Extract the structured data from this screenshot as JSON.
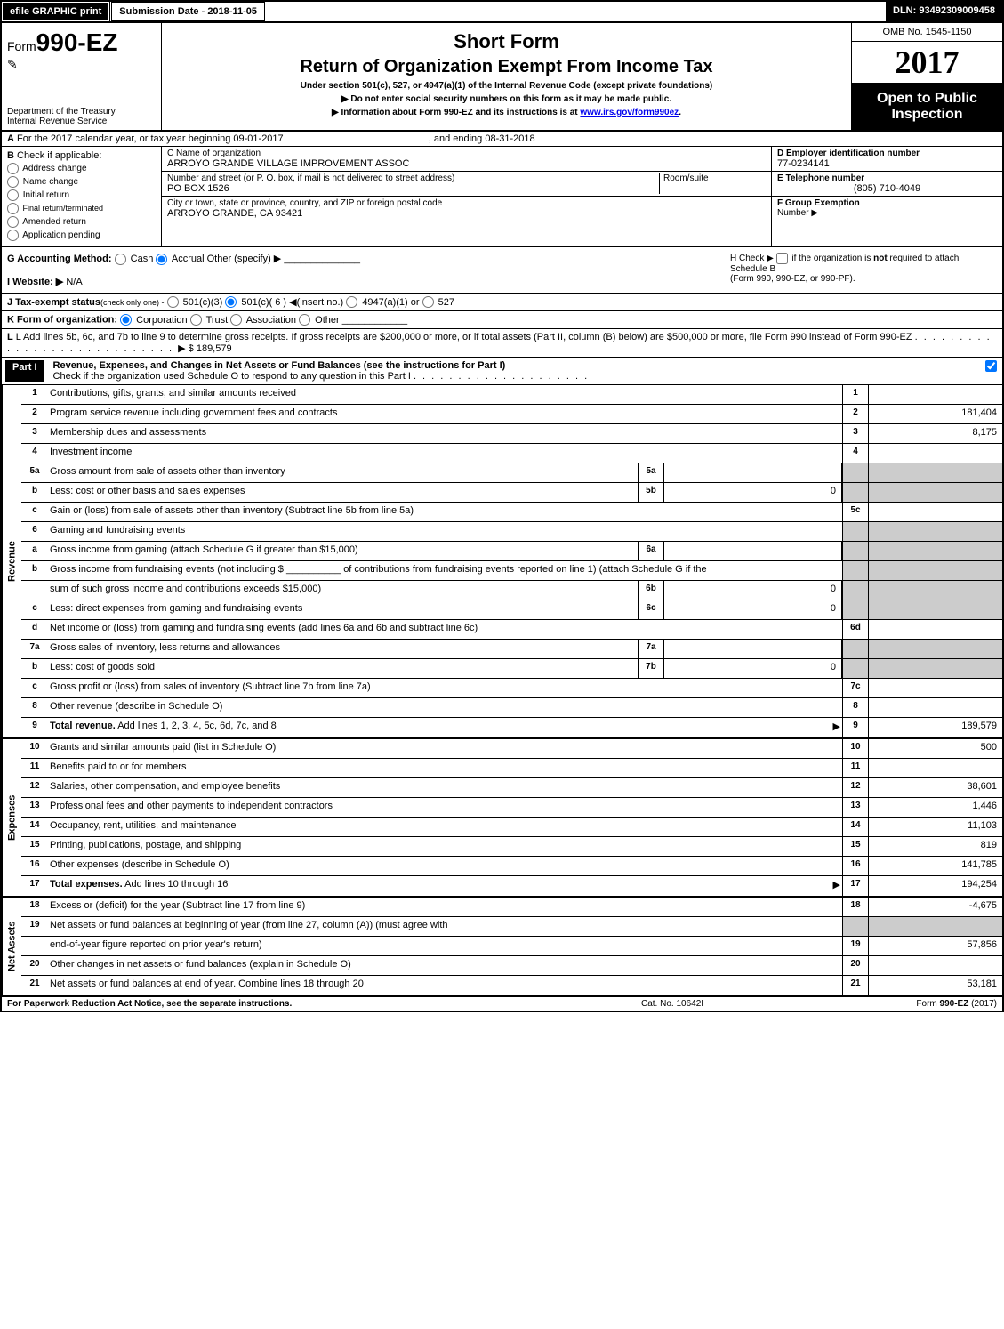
{
  "topbar": {
    "efile": "efile GRAPHIC print",
    "subdate": "Submission Date - 2018-11-05",
    "dln": "DLN: 93492309009458"
  },
  "header": {
    "form_prefix": "Form",
    "form_no": "990-EZ",
    "dept1": "Department of the Treasury",
    "dept2": "Internal Revenue Service",
    "shortform": "Short Form",
    "retorg": "Return of Organization Exempt From Income Tax",
    "undersec": "Under section 501(c), 527, or 4947(a)(1) of the Internal Revenue Code (except private foundations)",
    "warn1": "▶ Do not enter social security numbers on this form as it may be made public.",
    "warn2a": "▶ Information about Form 990-EZ and its instructions is at ",
    "warn2b": "www.irs.gov/form990ez",
    "warn2c": ".",
    "omb": "OMB No. 1545-1150",
    "year": "2017",
    "open1": "Open to Public",
    "open2": "Inspection"
  },
  "lineA": {
    "text1": "For the 2017 calendar year, or tax year beginning 09-01-2017",
    "text2": ", and ending 08-31-2018"
  },
  "boxB": {
    "heading": "Check if applicable:",
    "opts": [
      "Address change",
      "Name change",
      "Initial return",
      "Final return/terminated",
      "Amended return",
      "Application pending"
    ]
  },
  "boxC": {
    "name_label": "C Name of organization",
    "name": "ARROYO GRANDE VILLAGE IMPROVEMENT ASSOC",
    "street_label": "Number and street (or P. O. box, if mail is not delivered to street address)",
    "street": "PO BOX 1526",
    "room_label": "Room/suite",
    "city_label": "City or town, state or province, country, and ZIP or foreign postal code",
    "city": "ARROYO GRANDE, CA  93421"
  },
  "boxD": {
    "ein_label": "D Employer identification number",
    "ein": "77-0234141",
    "tel_label": "E Telephone number",
    "tel": "(805) 710-4049",
    "grp_label": "F Group Exemption",
    "grp2": "Number  ▶"
  },
  "lineG": {
    "label": "G Accounting Method:",
    "o1": "Cash",
    "o2": "Accrual",
    "o3": "Other (specify) ▶"
  },
  "lineH": {
    "text1": "H  Check ▶",
    "text2": "if the organization is ",
    "text3": "not",
    "text4": " required to attach Schedule B",
    "text5": "(Form 990, 990-EZ, or 990-PF)."
  },
  "lineI": {
    "label": "I Website: ▶",
    "val": "N/A"
  },
  "lineJ": {
    "label": "J Tax-exempt status",
    "sub": "(check only one) -",
    "o1": "501(c)(3)",
    "o2": "501(c)( 6 ) ◀(insert no.)",
    "o3": "4947(a)(1) or",
    "o4": "527"
  },
  "lineK": {
    "label": "K Form of organization:",
    "o1": "Corporation",
    "o2": "Trust",
    "o3": "Association",
    "o4": "Other"
  },
  "lineL": {
    "text1": "L Add lines 5b, 6c, and 7b to line 9 to determine gross receipts. If gross receipts are $200,000 or more, or if total assets (Part II, column (B) below) are $500,000 or more, file Form 990 instead of Form 990-EZ",
    "amt": "▶ $ 189,579"
  },
  "part1": {
    "label": "Part I",
    "title": "Revenue, Expenses, and Changes in Net Assets or Fund Balances (see the instructions for Part I)",
    "check": "Check if the organization used Schedule O to respond to any question in this Part I"
  },
  "sections": {
    "revenue": {
      "label": "Revenue",
      "rows": [
        {
          "n": "1",
          "t": "Contributions, gifts, grants, and similar amounts received",
          "sub": null,
          "box": "1",
          "val": "",
          "grey": false
        },
        {
          "n": "2",
          "t": "Program service revenue including government fees and contracts",
          "sub": null,
          "box": "2",
          "val": "181,404",
          "grey": false
        },
        {
          "n": "3",
          "t": "Membership dues and assessments",
          "sub": null,
          "box": "3",
          "val": "8,175",
          "grey": false
        },
        {
          "n": "4",
          "t": "Investment income",
          "sub": null,
          "box": "4",
          "val": "",
          "grey": false
        },
        {
          "n": "5a",
          "t": "Gross amount from sale of assets other than inventory",
          "sub": "5a",
          "subval": "",
          "box": null,
          "val": null,
          "grey": true
        },
        {
          "n": "b",
          "t": "Less: cost or other basis and sales expenses",
          "sub": "5b",
          "subval": "0",
          "box": null,
          "val": null,
          "grey": true
        },
        {
          "n": "c",
          "t": "Gain or (loss) from sale of assets other than inventory (Subtract line 5b from line 5a)",
          "sub": null,
          "box": "5c",
          "val": "",
          "grey": false
        },
        {
          "n": "6",
          "t": "Gaming and fundraising events",
          "sub": null,
          "box": null,
          "val": null,
          "grey": true
        },
        {
          "n": "a",
          "t": "Gross income from gaming (attach Schedule G if greater than $15,000)",
          "sub": "6a",
          "subval": "",
          "box": null,
          "val": null,
          "grey": true
        },
        {
          "n": "b",
          "t": "Gross income from fundraising events (not including $ __________ of contributions from fundraising events reported on line 1) (attach Schedule G if the",
          "sub": null,
          "box": null,
          "val": null,
          "grey": true
        },
        {
          "n": "",
          "t": "sum of such gross income and contributions exceeds $15,000)",
          "sub": "6b",
          "subval": "0",
          "box": null,
          "val": null,
          "grey": true
        },
        {
          "n": "c",
          "t": "Less: direct expenses from gaming and fundraising events",
          "sub": "6c",
          "subval": "0",
          "box": null,
          "val": null,
          "grey": true
        },
        {
          "n": "d",
          "t": "Net income or (loss) from gaming and fundraising events (add lines 6a and 6b and subtract line 6c)",
          "sub": null,
          "box": "6d",
          "val": "",
          "grey": false
        },
        {
          "n": "7a",
          "t": "Gross sales of inventory, less returns and allowances",
          "sub": "7a",
          "subval": "",
          "box": null,
          "val": null,
          "grey": true
        },
        {
          "n": "b",
          "t": "Less: cost of goods sold",
          "sub": "7b",
          "subval": "0",
          "box": null,
          "val": null,
          "grey": true
        },
        {
          "n": "c",
          "t": "Gross profit or (loss) from sales of inventory (Subtract line 7b from line 7a)",
          "sub": null,
          "box": "7c",
          "val": "",
          "grey": false
        },
        {
          "n": "8",
          "t": "Other revenue (describe in Schedule O)",
          "sub": null,
          "box": "8",
          "val": "",
          "grey": false
        },
        {
          "n": "9",
          "t": "Total revenue. Add lines 1, 2, 3, 4, 5c, 6d, 7c, and 8",
          "sub": null,
          "box": "9",
          "val": "189,579",
          "bold": true,
          "arrow": true
        }
      ]
    },
    "expenses": {
      "label": "Expenses",
      "rows": [
        {
          "n": "10",
          "t": "Grants and similar amounts paid (list in Schedule O)",
          "box": "10",
          "val": "500"
        },
        {
          "n": "11",
          "t": "Benefits paid to or for members",
          "box": "11",
          "val": ""
        },
        {
          "n": "12",
          "t": "Salaries, other compensation, and employee benefits",
          "box": "12",
          "val": "38,601"
        },
        {
          "n": "13",
          "t": "Professional fees and other payments to independent contractors",
          "box": "13",
          "val": "1,446"
        },
        {
          "n": "14",
          "t": "Occupancy, rent, utilities, and maintenance",
          "box": "14",
          "val": "11,103"
        },
        {
          "n": "15",
          "t": "Printing, publications, postage, and shipping",
          "box": "15",
          "val": "819"
        },
        {
          "n": "16",
          "t": "Other expenses (describe in Schedule O)",
          "box": "16",
          "val": "141,785"
        },
        {
          "n": "17",
          "t": "Total expenses. Add lines 10 through 16",
          "box": "17",
          "val": "194,254",
          "bold": true,
          "arrow": true
        }
      ]
    },
    "netassets": {
      "label": "Net Assets",
      "rows": [
        {
          "n": "18",
          "t": "Excess or (deficit) for the year (Subtract line 17 from line 9)",
          "box": "18",
          "val": "-4,675"
        },
        {
          "n": "19",
          "t": "Net assets or fund balances at beginning of year (from line 27, column (A)) (must agree with",
          "box": null,
          "val": null,
          "grey": true
        },
        {
          "n": "",
          "t": "end-of-year figure reported on prior year's return)",
          "box": "19",
          "val": "57,856"
        },
        {
          "n": "20",
          "t": "Other changes in net assets or fund balances (explain in Schedule O)",
          "box": "20",
          "val": ""
        },
        {
          "n": "21",
          "t": "Net assets or fund balances at end of year. Combine lines 18 through 20",
          "box": "21",
          "val": "53,181"
        }
      ]
    }
  },
  "footer": {
    "left": "For Paperwork Reduction Act Notice, see the separate instructions.",
    "center": "Cat. No. 10642I",
    "right": "Form 990-EZ (2017)"
  }
}
